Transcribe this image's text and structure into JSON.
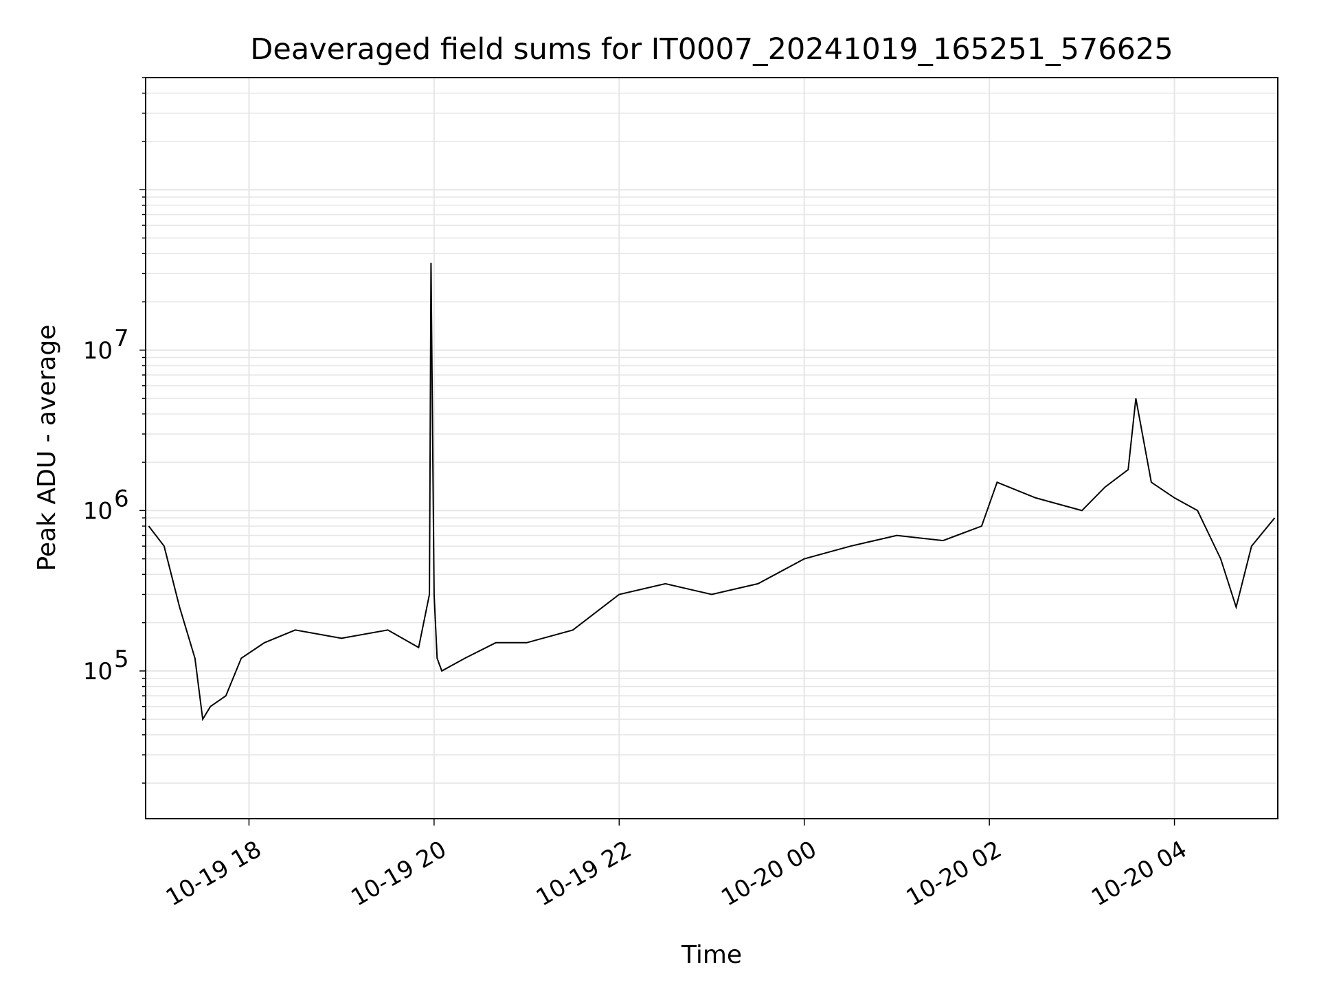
{
  "chart_data": {
    "type": "line",
    "title": "Deaveraged field sums for IT0007_20241019_165251_576625",
    "xlabel": "Time",
    "ylabel": "Peak ADU - average",
    "yscale": "log",
    "xlim": [
      "2024-10-19 16:53",
      "2024-10-20 05:07"
    ],
    "ylim": [
      12000,
      500000000
    ],
    "grid": true,
    "line_color": "#000000",
    "grid_color": "#e6e6e6",
    "x_ticks": [
      {
        "value": "2024-10-19 18:00",
        "label": "10-19 18"
      },
      {
        "value": "2024-10-19 20:00",
        "label": "10-19 20"
      },
      {
        "value": "2024-10-19 22:00",
        "label": "10-19 22"
      },
      {
        "value": "2024-10-20 00:00",
        "label": "10-20 00"
      },
      {
        "value": "2024-10-20 02:00",
        "label": "10-20 02"
      },
      {
        "value": "2024-10-20 04:00",
        "label": "10-20 04"
      }
    ],
    "y_ticks": [
      {
        "value": 100000,
        "base": "10",
        "exp": "5"
      },
      {
        "value": 1000000,
        "base": "10",
        "exp": "6"
      },
      {
        "value": 10000000,
        "base": "10",
        "exp": "7"
      }
    ],
    "series": [
      {
        "x": [
          "2024-10-19 16:55",
          "2024-10-19 17:05",
          "2024-10-19 17:15",
          "2024-10-19 17:25",
          "2024-10-19 17:30",
          "2024-10-19 17:35",
          "2024-10-19 17:45",
          "2024-10-19 17:55",
          "2024-10-19 18:10",
          "2024-10-19 18:30",
          "2024-10-19 19:00",
          "2024-10-19 19:30",
          "2024-10-19 19:50",
          "2024-10-19 19:57",
          "2024-10-19 19:58",
          "2024-10-19 20:00",
          "2024-10-19 20:02",
          "2024-10-19 20:05",
          "2024-10-19 20:20",
          "2024-10-19 20:40",
          "2024-10-19 21:00",
          "2024-10-19 21:30",
          "2024-10-19 22:00",
          "2024-10-19 22:30",
          "2024-10-19 23:00",
          "2024-10-19 23:30",
          "2024-10-20 00:00",
          "2024-10-20 00:30",
          "2024-10-20 01:00",
          "2024-10-20 01:30",
          "2024-10-20 01:55",
          "2024-10-20 02:05",
          "2024-10-20 02:30",
          "2024-10-20 03:00",
          "2024-10-20 03:15",
          "2024-10-20 03:30",
          "2024-10-20 03:35",
          "2024-10-20 03:45",
          "2024-10-20 04:00",
          "2024-10-20 04:15",
          "2024-10-20 04:30",
          "2024-10-20 04:40",
          "2024-10-20 04:50",
          "2024-10-20 05:05"
        ],
        "y": [
          800000,
          600000,
          250000,
          120000,
          50000,
          60000,
          70000,
          120000,
          150000,
          180000,
          160000,
          180000,
          140000,
          300000,
          35000000,
          300000,
          120000,
          100000,
          120000,
          150000,
          150000,
          180000,
          300000,
          350000,
          300000,
          350000,
          500000,
          600000,
          700000,
          650000,
          800000,
          1500000,
          1200000,
          1000000,
          1400000,
          1800000,
          5000000,
          1500000,
          1200000,
          1000000,
          500000,
          250000,
          600000,
          900000
        ]
      }
    ]
  }
}
